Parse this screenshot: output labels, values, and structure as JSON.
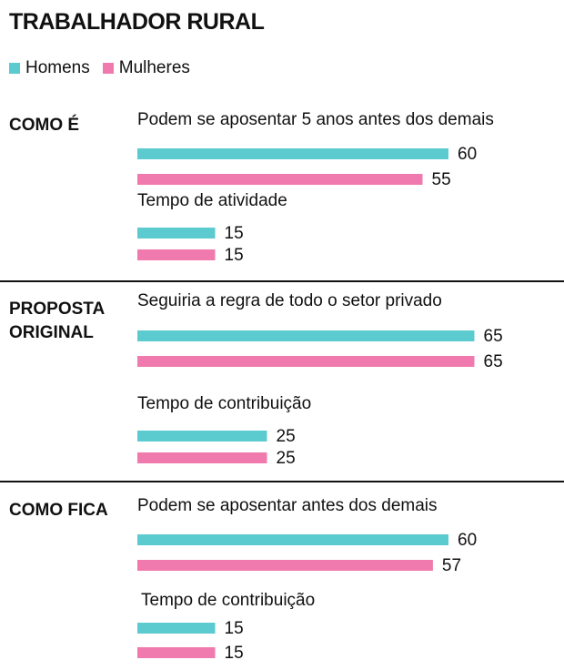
{
  "title": "TRABALHADOR RURAL",
  "legend": [
    {
      "label": "Homens",
      "color": "#5ccbd0"
    },
    {
      "label": "Mulheres",
      "color": "#f07aad"
    }
  ],
  "sections": [
    {
      "label": "COMO É"
    },
    {
      "label": "PROPOSTA\nORIGINAL"
    },
    {
      "label": "COMO FICA"
    }
  ],
  "chart_data": {
    "type": "bar",
    "orientation": "horizontal",
    "series_names": [
      "Homens",
      "Mulheres"
    ],
    "groups": [
      {
        "section": "COMO É",
        "label": "Podem se aposentar 5 anos antes dos demais",
        "values": [
          60,
          55
        ]
      },
      {
        "section": "COMO É",
        "label": "Tempo de atividade",
        "values": [
          15,
          15
        ]
      },
      {
        "section": "PROPOSTA ORIGINAL",
        "label": "Seguiria a regra de todo o setor privado",
        "values": [
          65,
          65
        ]
      },
      {
        "section": "PROPOSTA ORIGINAL",
        "label": "Tempo de contribuição",
        "values": [
          25,
          25
        ]
      },
      {
        "section": "COMO FICA",
        "label": "Podem se aposentar antes dos demais",
        "values": [
          60,
          57
        ]
      },
      {
        "section": "COMO FICA",
        "label": "Tempo de contribuição",
        "values": [
          15,
          15
        ]
      }
    ]
  }
}
